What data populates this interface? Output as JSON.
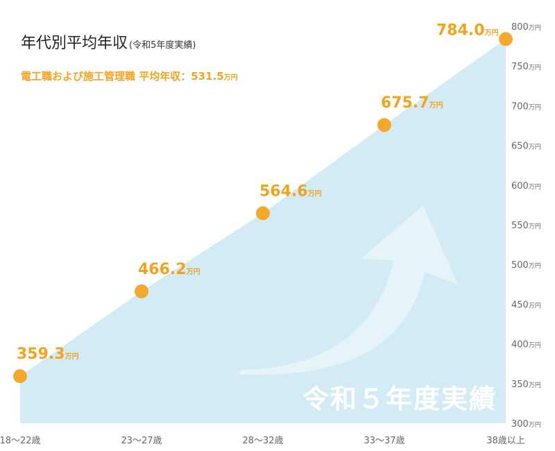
{
  "title": "年代別平均年収",
  "title_note": "(令和5年度実績)",
  "subtitle": {
    "text": "電工職および施工管理職 平均年収：531.5",
    "unit": "万円"
  },
  "colors": {
    "area_fill": "#d2ebf5",
    "marker": "#f4a82c",
    "label": "#f0a420",
    "axis_text": "#666666",
    "watermark": "#ffffff"
  },
  "watermark_text": "令和５年度実績",
  "icons": {
    "arrow": "curved-up-arrow-icon"
  },
  "chart_data": {
    "type": "area",
    "title": "年代別平均年収",
    "categories": [
      "18〜22歳",
      "23〜27歳",
      "28〜32歳",
      "33〜37歳",
      "38歳以上"
    ],
    "series": [
      {
        "values": [
          359.3,
          466.2,
          564.6,
          675.7,
          784.0
        ]
      }
    ],
    "value_labels": [
      "359.3",
      "466.2",
      "564.6",
      "675.7",
      "784.0"
    ],
    "value_unit": "万円",
    "ylim": [
      300,
      800
    ],
    "y_ticks": [
      300,
      350,
      400,
      450,
      500,
      550,
      600,
      650,
      700,
      750,
      800
    ],
    "y_tick_unit": "万円",
    "y_axis_position": "right",
    "grid": false,
    "legend": "none"
  }
}
